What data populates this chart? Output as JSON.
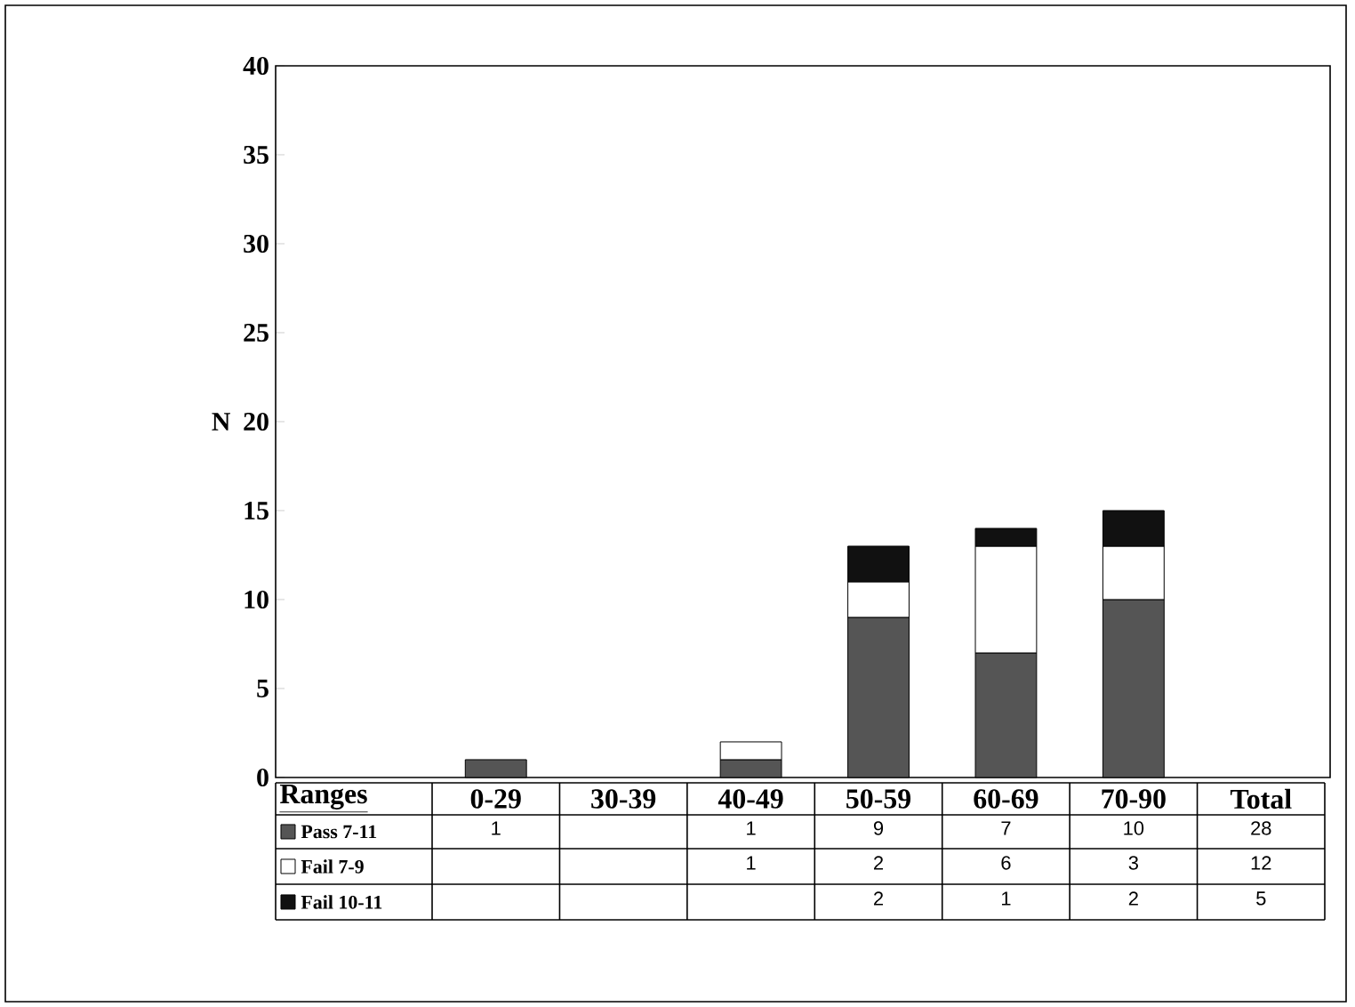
{
  "chart_data": {
    "type": "bar",
    "stacked": true,
    "xlabel": "Ranges",
    "ylabel": "N",
    "categories": [
      "0-29",
      "30-39",
      "40-49",
      "50-59",
      "60-69",
      "70-90"
    ],
    "series": [
      {
        "name": "Pass 7-11",
        "color": "#555555",
        "values": [
          1,
          null,
          1,
          9,
          7,
          10
        ]
      },
      {
        "name": "Fail 7-9",
        "color": "#ffffff",
        "values": [
          null,
          null,
          1,
          2,
          6,
          3
        ]
      },
      {
        "name": "Fail 10-11",
        "color": "#111111",
        "values": [
          null,
          null,
          null,
          2,
          1,
          2
        ]
      }
    ],
    "ylim": [
      0,
      40
    ],
    "yticks": [
      0,
      5,
      10,
      15,
      20,
      25,
      30,
      35,
      40
    ],
    "data_labels": true,
    "legend": "bottom",
    "grid": false,
    "annotations": [
      "Total",
      "28",
      "12",
      "5"
    ]
  }
}
